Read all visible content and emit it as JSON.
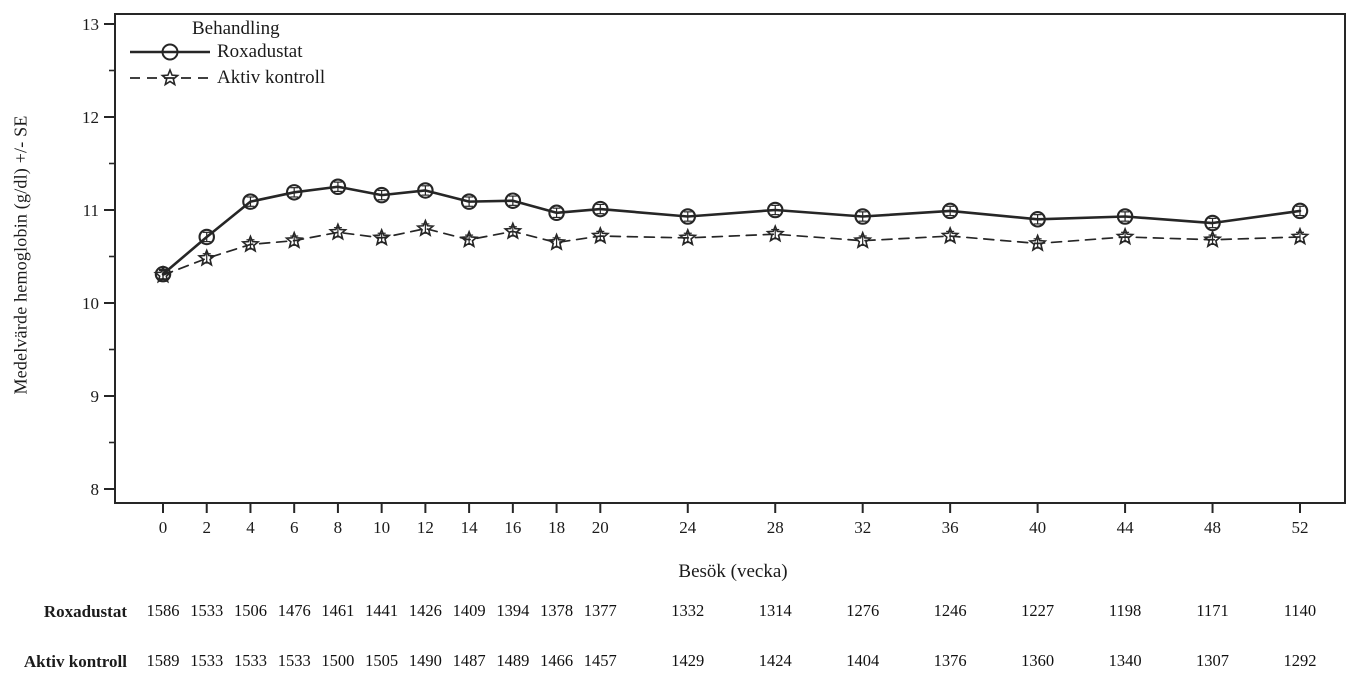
{
  "figure": {
    "legend_title": "Behandling"
  },
  "chart_data": {
    "type": "line",
    "title": "",
    "xlabel": "Besök (vecka)",
    "ylabel": "Medelvärde hemoglobin (g/dl) +/- SE",
    "ylim": [
      8,
      13
    ],
    "grid": false,
    "legend_position": "top-left-inside",
    "y_major_ticks": [
      13,
      12,
      11,
      10,
      9,
      8
    ],
    "y_minor_ticks": [
      12.5,
      11.5,
      10.5,
      9.5,
      8.5
    ],
    "x_ticks": [
      0,
      2,
      4,
      6,
      8,
      10,
      12,
      14,
      16,
      18,
      20,
      24,
      28,
      32,
      36,
      40,
      44,
      48,
      52
    ],
    "x": [
      0,
      2,
      4,
      6,
      8,
      10,
      12,
      14,
      16,
      18,
      20,
      24,
      28,
      32,
      36,
      40,
      44,
      48,
      52
    ],
    "series": [
      {
        "name": "Roxadustat",
        "line": "solid",
        "marker": "circle",
        "se": 0.05,
        "values": [
          10.31,
          10.71,
          11.09,
          11.19,
          11.25,
          11.16,
          11.21,
          11.09,
          11.1,
          10.97,
          11.01,
          10.93,
          11.0,
          10.93,
          10.99,
          10.9,
          10.93,
          10.86,
          10.99
        ],
        "n_values": [
          1586,
          1533,
          1506,
          1476,
          1461,
          1441,
          1426,
          1409,
          1394,
          1378,
          1377,
          1332,
          1314,
          1276,
          1246,
          1227,
          1198,
          1171,
          1140
        ]
      },
      {
        "name": "Aktiv kontroll",
        "line": "dashed",
        "marker": "star",
        "se": 0.05,
        "values": [
          10.3,
          10.48,
          10.63,
          10.67,
          10.76,
          10.7,
          10.8,
          10.68,
          10.77,
          10.65,
          10.72,
          10.7,
          10.74,
          10.67,
          10.72,
          10.64,
          10.71,
          10.68,
          10.71
        ],
        "n_values": [
          1589,
          1533,
          1533,
          1533,
          1500,
          1505,
          1490,
          1487,
          1489,
          1466,
          1457,
          1429,
          1424,
          1404,
          1376,
          1360,
          1340,
          1307,
          1292
        ]
      }
    ],
    "colors": {
      "ink": "#1b1b1b",
      "line": "#262626",
      "background": "#ffffff"
    }
  }
}
